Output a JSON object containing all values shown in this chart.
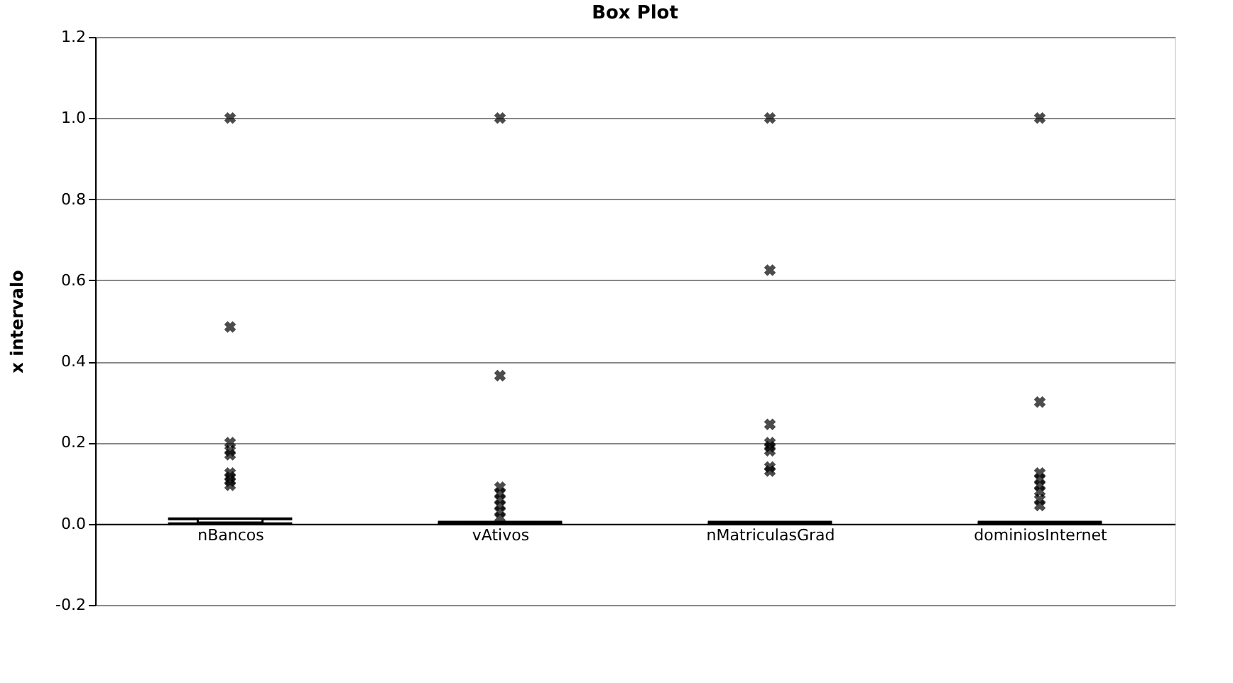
{
  "chart_data": {
    "type": "box",
    "title": "Box Plot",
    "ylabel": "x  intervalo",
    "categories": [
      "nBancos",
      "vAtivos",
      "nMatriculasGrad",
      "dominiosInternet"
    ],
    "boxes": [
      {
        "low": 0,
        "q1": 0,
        "median": 0.003,
        "q3": 0.012,
        "high": 0.012,
        "outliers": [
          1.0,
          0.485,
          0.2,
          0.18,
          0.17,
          0.125,
          0.115,
          0.105,
          0.095
        ]
      },
      {
        "low": 0,
        "q1": 0,
        "median": 0,
        "q3": 0.004,
        "high": 0.004,
        "outliers": [
          1.0,
          0.365,
          0.09,
          0.075,
          0.06,
          0.045,
          0.03,
          0.015
        ]
      },
      {
        "low": 0,
        "q1": 0,
        "median": 0,
        "q3": 0.004,
        "high": 0.004,
        "outliers": [
          1.0,
          0.625,
          0.245,
          0.2,
          0.19,
          0.18,
          0.14,
          0.13
        ]
      },
      {
        "low": 0,
        "q1": 0,
        "median": 0,
        "q3": 0.004,
        "high": 0.004,
        "outliers": [
          1.0,
          0.3,
          0.125,
          0.11,
          0.095,
          0.08,
          0.06,
          0.045
        ]
      }
    ],
    "ylim": [
      -0.2,
      1.2
    ],
    "yticks": [
      {
        "value": -0.2,
        "label": "-0.2"
      },
      {
        "value": 0,
        "label": "0.0"
      },
      {
        "value": 0.2,
        "label": "0.2"
      },
      {
        "value": 0.4,
        "label": "0.4"
      },
      {
        "value": 0.6,
        "label": "0.6"
      },
      {
        "value": 0.8,
        "label": "0.8"
      },
      {
        "value": 1,
        "label": "1.0"
      },
      {
        "value": 1.2,
        "label": "1.2"
      }
    ],
    "grid": "y",
    "marker": "cross"
  }
}
